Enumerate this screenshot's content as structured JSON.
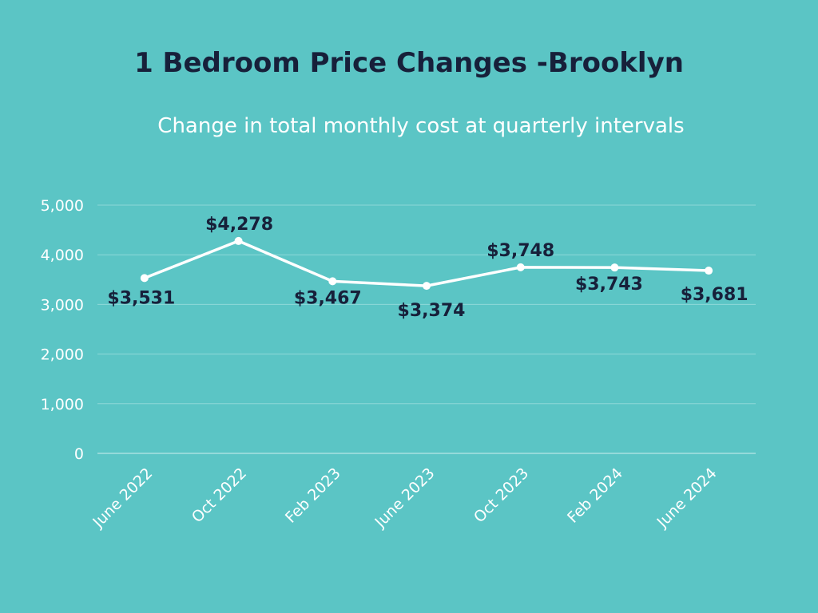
{
  "chart_data": {
    "type": "line",
    "title": "1 Bedroom Price Changes -Brooklyn",
    "subtitle": "Change in total monthly cost at quarterly intervals",
    "xlabel": "",
    "ylabel": "",
    "categories": [
      "June 2022",
      "Oct 2022",
      "Feb 2023",
      "June 2023",
      "Oct 2023",
      "Feb 2024",
      "June 2024"
    ],
    "series": [
      {
        "values": [
          3531,
          4278,
          3467,
          3374,
          3748,
          3743,
          3681
        ],
        "labels": [
          "$3,531",
          "$4,278",
          "$3,467",
          "$3,374",
          "$3,748",
          "$3,743",
          "$3,681"
        ]
      }
    ],
    "ylim": [
      0,
      5000
    ],
    "yticks": [
      0,
      1000,
      2000,
      3000,
      4000,
      5000
    ],
    "ytick_labels": [
      "0",
      "1,000",
      "2,000",
      "3,000",
      "4,000",
      "5,000"
    ],
    "grid": true,
    "legend": "none"
  },
  "colors": {
    "background": "#5BC5C5",
    "title": "#17203A",
    "line": "#FFFFFF",
    "data_label": "#17203A",
    "axis_text": "#FFFFFF",
    "grid": "#8ED8D8"
  }
}
